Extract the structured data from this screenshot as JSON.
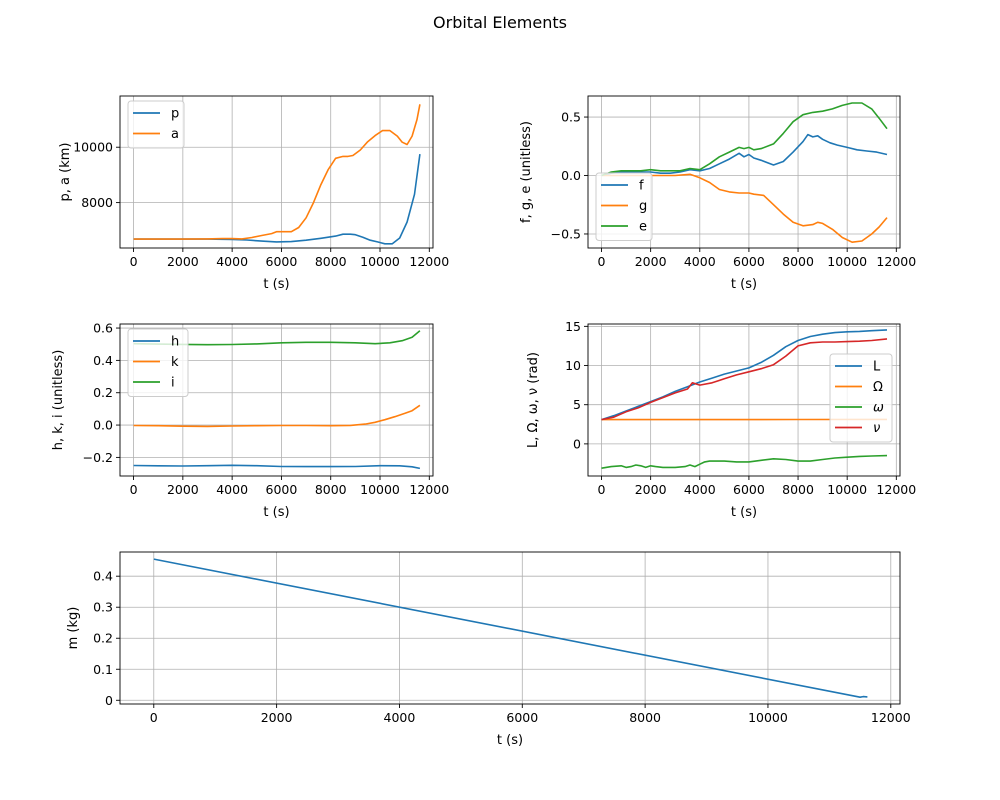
{
  "figure": {
    "title": "Orbital Elements"
  },
  "chart_data": [
    {
      "type": "line",
      "xlabel": "t (s)",
      "ylabel": "p, a (km)",
      "xlim": [
        -550,
        12150
      ],
      "ylim": [
        6360,
        11850
      ],
      "xticks": [
        0,
        2000,
        4000,
        6000,
        8000,
        10000,
        12000
      ],
      "yticks": [
        8000,
        10000
      ],
      "grid": true,
      "legend_position": "upper-left",
      "series": [
        {
          "name": "p",
          "color": "#1f77b4",
          "x": [
            0,
            1000,
            2000,
            3000,
            4000,
            4600,
            5200,
            5800,
            6400,
            7000,
            7600,
            8200,
            8500,
            8800,
            9000,
            9300,
            9600,
            9900,
            10200,
            10500,
            10800,
            11100,
            11400,
            11620
          ],
          "y": [
            6680,
            6680,
            6680,
            6680,
            6670,
            6650,
            6610,
            6580,
            6590,
            6640,
            6710,
            6790,
            6860,
            6860,
            6840,
            6750,
            6640,
            6580,
            6510,
            6510,
            6720,
            7300,
            8300,
            9750
          ]
        },
        {
          "name": "a",
          "color": "#ff7f0e",
          "x": [
            0,
            1000,
            2000,
            3000,
            3600,
            4000,
            4400,
            4800,
            5200,
            5600,
            5800,
            6100,
            6400,
            6700,
            7000,
            7300,
            7600,
            7900,
            8200,
            8500,
            8700,
            8900,
            9200,
            9500,
            9800,
            10100,
            10400,
            10700,
            10900,
            11100,
            11300,
            11500,
            11620
          ],
          "y": [
            6680,
            6680,
            6680,
            6690,
            6700,
            6700,
            6690,
            6740,
            6810,
            6880,
            6950,
            6950,
            6950,
            7100,
            7450,
            8000,
            8650,
            9200,
            9600,
            9670,
            9670,
            9700,
            9900,
            10200,
            10420,
            10600,
            10600,
            10400,
            10180,
            10100,
            10400,
            11000,
            11550
          ]
        }
      ]
    },
    {
      "type": "line",
      "xlabel": "t (s)",
      "ylabel": "f, g, e (unitless)",
      "xlim": [
        -550,
        12150
      ],
      "ylim": [
        -0.62,
        0.68
      ],
      "xticks": [
        0,
        2000,
        4000,
        6000,
        8000,
        10000,
        12000
      ],
      "yticks": [
        -0.5,
        0.0,
        0.5
      ],
      "yticklabels": [
        "−0.5",
        "0.0",
        "0.5"
      ],
      "grid": true,
      "legend_position": "lower-left",
      "series": [
        {
          "name": "f",
          "color": "#1f77b4",
          "x": [
            0,
            400,
            800,
            1200,
            1600,
            2000,
            2400,
            2800,
            3200,
            3600,
            4000,
            4400,
            4800,
            5200,
            5600,
            5800,
            6000,
            6200,
            6500,
            7000,
            7400,
            7800,
            8200,
            8400,
            8600,
            8800,
            9000,
            9300,
            9600,
            10000,
            10400,
            10800,
            11200,
            11620
          ],
          "y": [
            0.0,
            0.02,
            0.03,
            0.03,
            0.03,
            0.03,
            0.02,
            0.02,
            0.03,
            0.05,
            0.04,
            0.06,
            0.1,
            0.14,
            0.19,
            0.16,
            0.18,
            0.15,
            0.13,
            0.09,
            0.12,
            0.2,
            0.29,
            0.35,
            0.33,
            0.34,
            0.31,
            0.28,
            0.26,
            0.24,
            0.22,
            0.21,
            0.2,
            0.18
          ]
        },
        {
          "name": "g",
          "color": "#ff7f0e",
          "x": [
            0,
            1000,
            2000,
            3000,
            3600,
            4000,
            4400,
            4800,
            5200,
            5600,
            6000,
            6200,
            6600,
            7000,
            7400,
            7800,
            8200,
            8600,
            8800,
            9000,
            9400,
            9800,
            10200,
            10600,
            11000,
            11300,
            11620
          ],
          "y": [
            0.0,
            0.0,
            0.0,
            0.0,
            0.01,
            -0.02,
            -0.06,
            -0.12,
            -0.14,
            -0.15,
            -0.15,
            -0.16,
            -0.17,
            -0.25,
            -0.33,
            -0.4,
            -0.43,
            -0.42,
            -0.4,
            -0.41,
            -0.46,
            -0.53,
            -0.57,
            -0.56,
            -0.5,
            -0.44,
            -0.36
          ]
        },
        {
          "name": "e",
          "color": "#2ca02c",
          "x": [
            0,
            400,
            800,
            1200,
            1600,
            2000,
            2400,
            2800,
            3200,
            3600,
            4000,
            4400,
            4800,
            5200,
            5600,
            5800,
            6000,
            6200,
            6500,
            7000,
            7400,
            7800,
            8200,
            8600,
            9000,
            9400,
            9800,
            10200,
            10600,
            11000,
            11300,
            11620
          ],
          "y": [
            0.0,
            0.03,
            0.04,
            0.04,
            0.04,
            0.05,
            0.04,
            0.04,
            0.04,
            0.06,
            0.05,
            0.1,
            0.16,
            0.2,
            0.24,
            0.23,
            0.24,
            0.22,
            0.23,
            0.27,
            0.36,
            0.46,
            0.52,
            0.54,
            0.55,
            0.57,
            0.6,
            0.62,
            0.62,
            0.57,
            0.49,
            0.4
          ]
        }
      ]
    },
    {
      "type": "line",
      "xlabel": "t (s)",
      "ylabel": "h, k, i (unitless)",
      "xlim": [
        -550,
        12150
      ],
      "ylim": [
        -0.315,
        0.625
      ],
      "xticks": [
        0,
        2000,
        4000,
        6000,
        8000,
        10000,
        12000
      ],
      "yticks": [
        -0.2,
        0.0,
        0.2,
        0.4,
        0.6
      ],
      "yticklabels": [
        "−0.2",
        "0.0",
        "0.2",
        "0.4",
        "0.6"
      ],
      "grid": true,
      "legend_position": "upper-left",
      "series": [
        {
          "name": "h",
          "color": "#1f77b4",
          "x": [
            0,
            1000,
            2000,
            3000,
            4000,
            5000,
            6000,
            7000,
            8000,
            9000,
            10000,
            10800,
            11300,
            11620
          ],
          "y": [
            -0.25,
            -0.252,
            -0.253,
            -0.251,
            -0.249,
            -0.251,
            -0.256,
            -0.257,
            -0.257,
            -0.256,
            -0.251,
            -0.252,
            -0.258,
            -0.268
          ]
        },
        {
          "name": "k",
          "color": "#ff7f0e",
          "x": [
            0,
            1000,
            2000,
            3000,
            4000,
            5000,
            6000,
            7000,
            8000,
            8800,
            9400,
            9800,
            10200,
            10600,
            11000,
            11300,
            11620
          ],
          "y": [
            -0.003,
            -0.004,
            -0.007,
            -0.008,
            -0.006,
            -0.004,
            -0.003,
            -0.003,
            -0.004,
            -0.002,
            0.006,
            0.017,
            0.033,
            0.052,
            0.072,
            0.089,
            0.122
          ]
        },
        {
          "name": "i",
          "color": "#2ca02c",
          "x": [
            0,
            1000,
            2000,
            3000,
            4000,
            5000,
            6000,
            7000,
            8000,
            9000,
            9800,
            10400,
            10900,
            11300,
            11620
          ],
          "y": [
            0.503,
            0.501,
            0.499,
            0.497,
            0.498,
            0.502,
            0.509,
            0.512,
            0.512,
            0.509,
            0.503,
            0.509,
            0.522,
            0.543,
            0.583
          ]
        }
      ]
    },
    {
      "type": "line",
      "xlabel": "t (s)",
      "ylabel": "L, Ω, ω, ν (rad)",
      "xlim": [
        -550,
        12150
      ],
      "ylim": [
        -4.1,
        15.3
      ],
      "xticks": [
        0,
        2000,
        4000,
        6000,
        8000,
        10000,
        12000
      ],
      "yticks": [
        0,
        5,
        10,
        15
      ],
      "grid": true,
      "legend_position": "center-right",
      "series": [
        {
          "name": "L",
          "color": "#1f77b4",
          "x": [
            0,
            500,
            1000,
            1500,
            2000,
            2500,
            3000,
            3500,
            4000,
            4500,
            5000,
            5500,
            6000,
            6500,
            7000,
            7500,
            8000,
            8500,
            9000,
            9500,
            10000,
            10500,
            11000,
            11620
          ],
          "y": [
            3.1,
            3.6,
            4.2,
            4.8,
            5.4,
            6.0,
            6.7,
            7.3,
            7.9,
            8.4,
            8.9,
            9.3,
            9.7,
            10.4,
            11.3,
            12.4,
            13.2,
            13.7,
            14.0,
            14.2,
            14.3,
            14.35,
            14.45,
            14.55
          ]
        },
        {
          "name": "Ω",
          "color": "#ff7f0e",
          "x": [
            0,
            4000,
            8000,
            11620
          ],
          "y": [
            3.1,
            3.1,
            3.11,
            3.13
          ]
        },
        {
          "name": "ω",
          "color": "#2ca02c",
          "x": [
            0,
            400,
            800,
            1000,
            1200,
            1400,
            1600,
            1800,
            2000,
            2200,
            2500,
            3000,
            3400,
            3600,
            3800,
            4000,
            4200,
            4400,
            5000,
            5500,
            6000,
            6500,
            7000,
            7500,
            8000,
            8500,
            9000,
            9500,
            10000,
            10500,
            11000,
            11620
          ],
          "y": [
            -3.1,
            -2.9,
            -2.8,
            -3.0,
            -2.9,
            -2.7,
            -2.8,
            -3.0,
            -2.8,
            -2.9,
            -3.0,
            -3.0,
            -2.9,
            -2.7,
            -2.9,
            -2.6,
            -2.3,
            -2.2,
            -2.2,
            -2.3,
            -2.3,
            -2.1,
            -1.9,
            -2.0,
            -2.2,
            -2.2,
            -2.0,
            -1.8,
            -1.7,
            -1.6,
            -1.55,
            -1.5
          ]
        },
        {
          "name": "ν",
          "color": "#d62728",
          "x": [
            0,
            500,
            1000,
            1500,
            2000,
            2500,
            3000,
            3500,
            3700,
            4000,
            4500,
            5000,
            5500,
            6000,
            6500,
            7000,
            7500,
            8000,
            8500,
            9000,
            9500,
            10000,
            10500,
            11000,
            11620
          ],
          "y": [
            3.1,
            3.4,
            4.1,
            4.6,
            5.3,
            5.9,
            6.5,
            7.0,
            7.8,
            7.5,
            7.8,
            8.3,
            8.8,
            9.2,
            9.6,
            10.1,
            11.2,
            12.5,
            12.9,
            13.0,
            13.0,
            13.05,
            13.1,
            13.2,
            13.4
          ]
        }
      ]
    },
    {
      "type": "line",
      "xlabel": "t (s)",
      "ylabel": "m (kg)",
      "xlim": [
        -550,
        12150
      ],
      "ylim": [
        -0.012,
        0.478
      ],
      "xticks": [
        0,
        2000,
        4000,
        6000,
        8000,
        10000,
        12000
      ],
      "yticks": [
        0.0,
        0.1,
        0.2,
        0.3,
        0.4
      ],
      "grid": true,
      "legend_position": "none",
      "series": [
        {
          "name": "",
          "color": "#1f77b4",
          "x": [
            0,
            11500,
            11550,
            11620
          ],
          "y": [
            0.455,
            0.01,
            0.012,
            0.011
          ]
        }
      ]
    }
  ]
}
